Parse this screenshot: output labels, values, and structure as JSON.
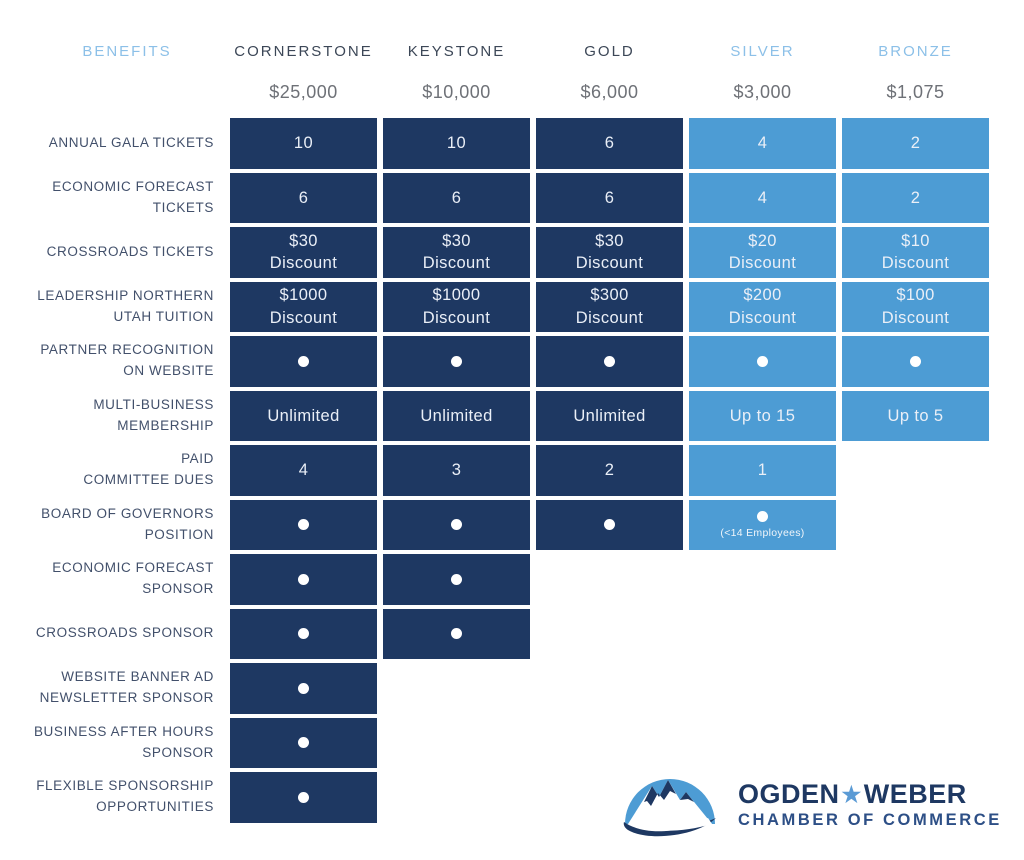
{
  "header": {
    "benefits_label": "BENEFITS",
    "tiers": [
      {
        "name": "CORNERSTONE",
        "price": "$25,000",
        "style": "dark"
      },
      {
        "name": "KEYSTONE",
        "price": "$10,000",
        "style": "dark"
      },
      {
        "name": "GOLD",
        "price": "$6,000",
        "style": "dark"
      },
      {
        "name": "SILVER",
        "price": "$3,000",
        "style": "light"
      },
      {
        "name": "BRONZE",
        "price": "$1,075",
        "style": "light"
      }
    ]
  },
  "colors": {
    "dark_cell": "#1e3862",
    "light_cell": "#4d9cd4",
    "header_light_text": "#8cc0e8",
    "header_dark_text": "#3c4757",
    "price_text": "#6e7177",
    "label_text": "#42506b"
  },
  "rows": [
    {
      "label": "ANNUAL GALA TICKETS",
      "cells": [
        {
          "t": "10"
        },
        {
          "t": "10"
        },
        {
          "t": "6"
        },
        {
          "t": "4"
        },
        {
          "t": "2"
        }
      ]
    },
    {
      "label": "ECONOMIC FORECAST\nTICKETS",
      "cells": [
        {
          "t": "6"
        },
        {
          "t": "6"
        },
        {
          "t": "6"
        },
        {
          "t": "4"
        },
        {
          "t": "2"
        }
      ]
    },
    {
      "label": "CROSSROADS TICKETS",
      "cells": [
        {
          "t": "$30\nDiscount"
        },
        {
          "t": "$30\nDiscount"
        },
        {
          "t": "$30\nDiscount"
        },
        {
          "t": "$20\nDiscount"
        },
        {
          "t": "$10\nDiscount"
        }
      ]
    },
    {
      "label": "LEADERSHIP NORTHERN\nUTAH TUITION",
      "cells": [
        {
          "t": "$1000\nDiscount"
        },
        {
          "t": "$1000\nDiscount"
        },
        {
          "t": "$300\nDiscount"
        },
        {
          "t": "$200\nDiscount"
        },
        {
          "t": "$100\nDiscount"
        }
      ]
    },
    {
      "label": "PARTNER RECOGNITION\nON WEBSITE",
      "cells": [
        {
          "dot": true
        },
        {
          "dot": true
        },
        {
          "dot": true
        },
        {
          "dot": true
        },
        {
          "dot": true
        }
      ]
    },
    {
      "label": "MULTI-BUSINESS\nMEMBERSHIP",
      "cells": [
        {
          "t": "Unlimited"
        },
        {
          "t": "Unlimited"
        },
        {
          "t": "Unlimited"
        },
        {
          "t": "Up to 15"
        },
        {
          "t": "Up to 5"
        }
      ]
    },
    {
      "label": "PAID\nCOMMITTEE DUES",
      "cells": [
        {
          "t": "4"
        },
        {
          "t": "3"
        },
        {
          "t": "2"
        },
        {
          "t": "1"
        },
        null
      ]
    },
    {
      "label": "BOARD OF GOVERNORS\nPOSITION",
      "cells": [
        {
          "dot": true
        },
        {
          "dot": true
        },
        {
          "dot": true
        },
        {
          "dot": true,
          "note": "(<14 Employees)"
        },
        null
      ]
    },
    {
      "label": "ECONOMIC FORECAST\nSPONSOR",
      "cells": [
        {
          "dot": true
        },
        {
          "dot": true
        },
        null,
        null,
        null
      ]
    },
    {
      "label": "CROSSROADS SPONSOR",
      "cells": [
        {
          "dot": true
        },
        {
          "dot": true
        },
        null,
        null,
        null
      ]
    },
    {
      "label": "WEBSITE BANNER AD\nNEWSLETTER SPONSOR",
      "cells": [
        {
          "dot": true
        },
        null,
        null,
        null,
        null
      ]
    },
    {
      "label": "BUSINESS AFTER HOURS\nSPONSOR",
      "cells": [
        {
          "dot": true
        },
        null,
        null,
        null,
        null
      ]
    },
    {
      "label": "FLEXIBLE SPONSORSHIP\nOPPORTUNITIES",
      "cells": [
        {
          "dot": true
        },
        null,
        null,
        null,
        null
      ]
    }
  ],
  "logo": {
    "line1_left": "OGDEN",
    "star": "★",
    "line1_right": "WEBER",
    "line2": "CHAMBER OF COMMERCE"
  }
}
